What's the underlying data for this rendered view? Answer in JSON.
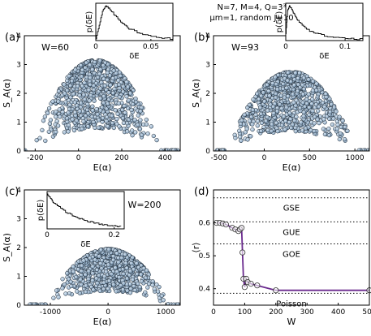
{
  "header": {
    "line1": "N=7, M=4, Q=3³",
    "line2": "μm=1, random J=10"
  },
  "chart_data": [
    {
      "panel": "(a)",
      "type": "scatter",
      "annotation": "W=60",
      "xlabel": "E(α)",
      "ylabel": "S_A(α)",
      "xlim": [
        -250,
        470
      ],
      "ylim": [
        0,
        4
      ],
      "xticks": [
        -200,
        0,
        200,
        400
      ],
      "yticks": [
        0,
        1,
        2,
        3,
        4
      ],
      "envelope": {
        "center": 80,
        "halfwidth": 300,
        "peak": 3.15
      },
      "inset": {
        "type": "histogram",
        "ylabel": "p(δE)",
        "xlabel": "δE",
        "xlim": [
          0,
          0.07
        ],
        "xticks": [
          0,
          0.05
        ],
        "tick_labels": [
          "0",
          "0.05"
        ],
        "x": [
          0,
          0.003,
          0.006,
          0.009,
          0.012,
          0.015,
          0.02,
          0.025,
          0.03,
          0.04,
          0.05,
          0.06,
          0.07
        ],
        "p": [
          0.05,
          0.45,
          0.85,
          1.0,
          0.92,
          0.8,
          0.62,
          0.46,
          0.34,
          0.2,
          0.12,
          0.07,
          0.05
        ]
      }
    },
    {
      "panel": "(b)",
      "type": "scatter",
      "annotation": "W=93",
      "xlabel": "E(α)",
      "ylabel": "S_A(α)",
      "xlim": [
        -560,
        1160
      ],
      "ylim": [
        0,
        4
      ],
      "xticks": [
        -500,
        0,
        500,
        1000
      ],
      "yticks": [
        0,
        1,
        2,
        3,
        4
      ],
      "envelope": {
        "center": 300,
        "halfwidth": 720,
        "peak": 2.75
      },
      "inset": {
        "type": "histogram",
        "ylabel": "p(δE)",
        "xlabel": "δE",
        "xlim": [
          0,
          0.13
        ],
        "xticks": [
          0,
          0.1
        ],
        "tick_labels": [
          "0",
          "0.1"
        ],
        "x": [
          0,
          0.003,
          0.006,
          0.01,
          0.015,
          0.02,
          0.03,
          0.04,
          0.05,
          0.07,
          0.09,
          0.11,
          0.13
        ],
        "p": [
          0.2,
          0.85,
          1.0,
          0.9,
          0.72,
          0.58,
          0.4,
          0.28,
          0.2,
          0.12,
          0.08,
          0.05,
          0.04
        ]
      }
    },
    {
      "panel": "(c)",
      "type": "scatter",
      "annotation": "W=200",
      "xlabel": "E(α)",
      "ylabel": "S_A(α)",
      "xlim": [
        -1450,
        1250
      ],
      "ylim": [
        0,
        4
      ],
      "xticks": [
        -1000,
        0,
        1000
      ],
      "yticks": [
        0,
        1,
        2,
        3,
        4
      ],
      "envelope": {
        "center": 0,
        "halfwidth": 1080,
        "peak": 1.95
      },
      "inset": {
        "type": "histogram",
        "ylabel": "p(δE)",
        "xlabel": "δE",
        "xlim": [
          0,
          0.23
        ],
        "xticks": [
          0,
          0.2
        ],
        "tick_labels": [
          "0",
          "0.2"
        ],
        "x": [
          0,
          0.01,
          0.02,
          0.04,
          0.06,
          0.08,
          0.1,
          0.12,
          0.14,
          0.16,
          0.18,
          0.2,
          0.22
        ],
        "p": [
          1.0,
          0.88,
          0.74,
          0.58,
          0.46,
          0.36,
          0.28,
          0.22,
          0.17,
          0.13,
          0.1,
          0.08,
          0.06
        ]
      }
    },
    {
      "panel": "(d)",
      "type": "line",
      "xlabel": "W",
      "ylabel": "⟨r⟩",
      "xlim": [
        0,
        500
      ],
      "ylim": [
        0.35,
        0.7
      ],
      "xticks": [
        0,
        100,
        200,
        300,
        400,
        500
      ],
      "yticks": [
        0.4,
        0.5,
        0.6
      ],
      "tick_labels_y": [
        ".4",
        ".5",
        ".6"
      ],
      "line_color": "#6a2a8e",
      "x": [
        10,
        20,
        30,
        40,
        60,
        70,
        80,
        85,
        90,
        93,
        96,
        100,
        105,
        110,
        120,
        140,
        200,
        500
      ],
      "y": [
        0.6,
        0.6,
        0.598,
        0.595,
        0.585,
        0.58,
        0.575,
        0.58,
        0.585,
        0.51,
        0.43,
        0.405,
        0.43,
        0.42,
        0.415,
        0.41,
        0.395,
        0.395
      ],
      "reference_lines": [
        {
          "label": "GSE",
          "y": 0.676
        },
        {
          "label": "GUE",
          "y": 0.603
        },
        {
          "label": "GOE",
          "y": 0.536
        },
        {
          "label": "Poisson",
          "y": 0.386
        }
      ]
    }
  ]
}
